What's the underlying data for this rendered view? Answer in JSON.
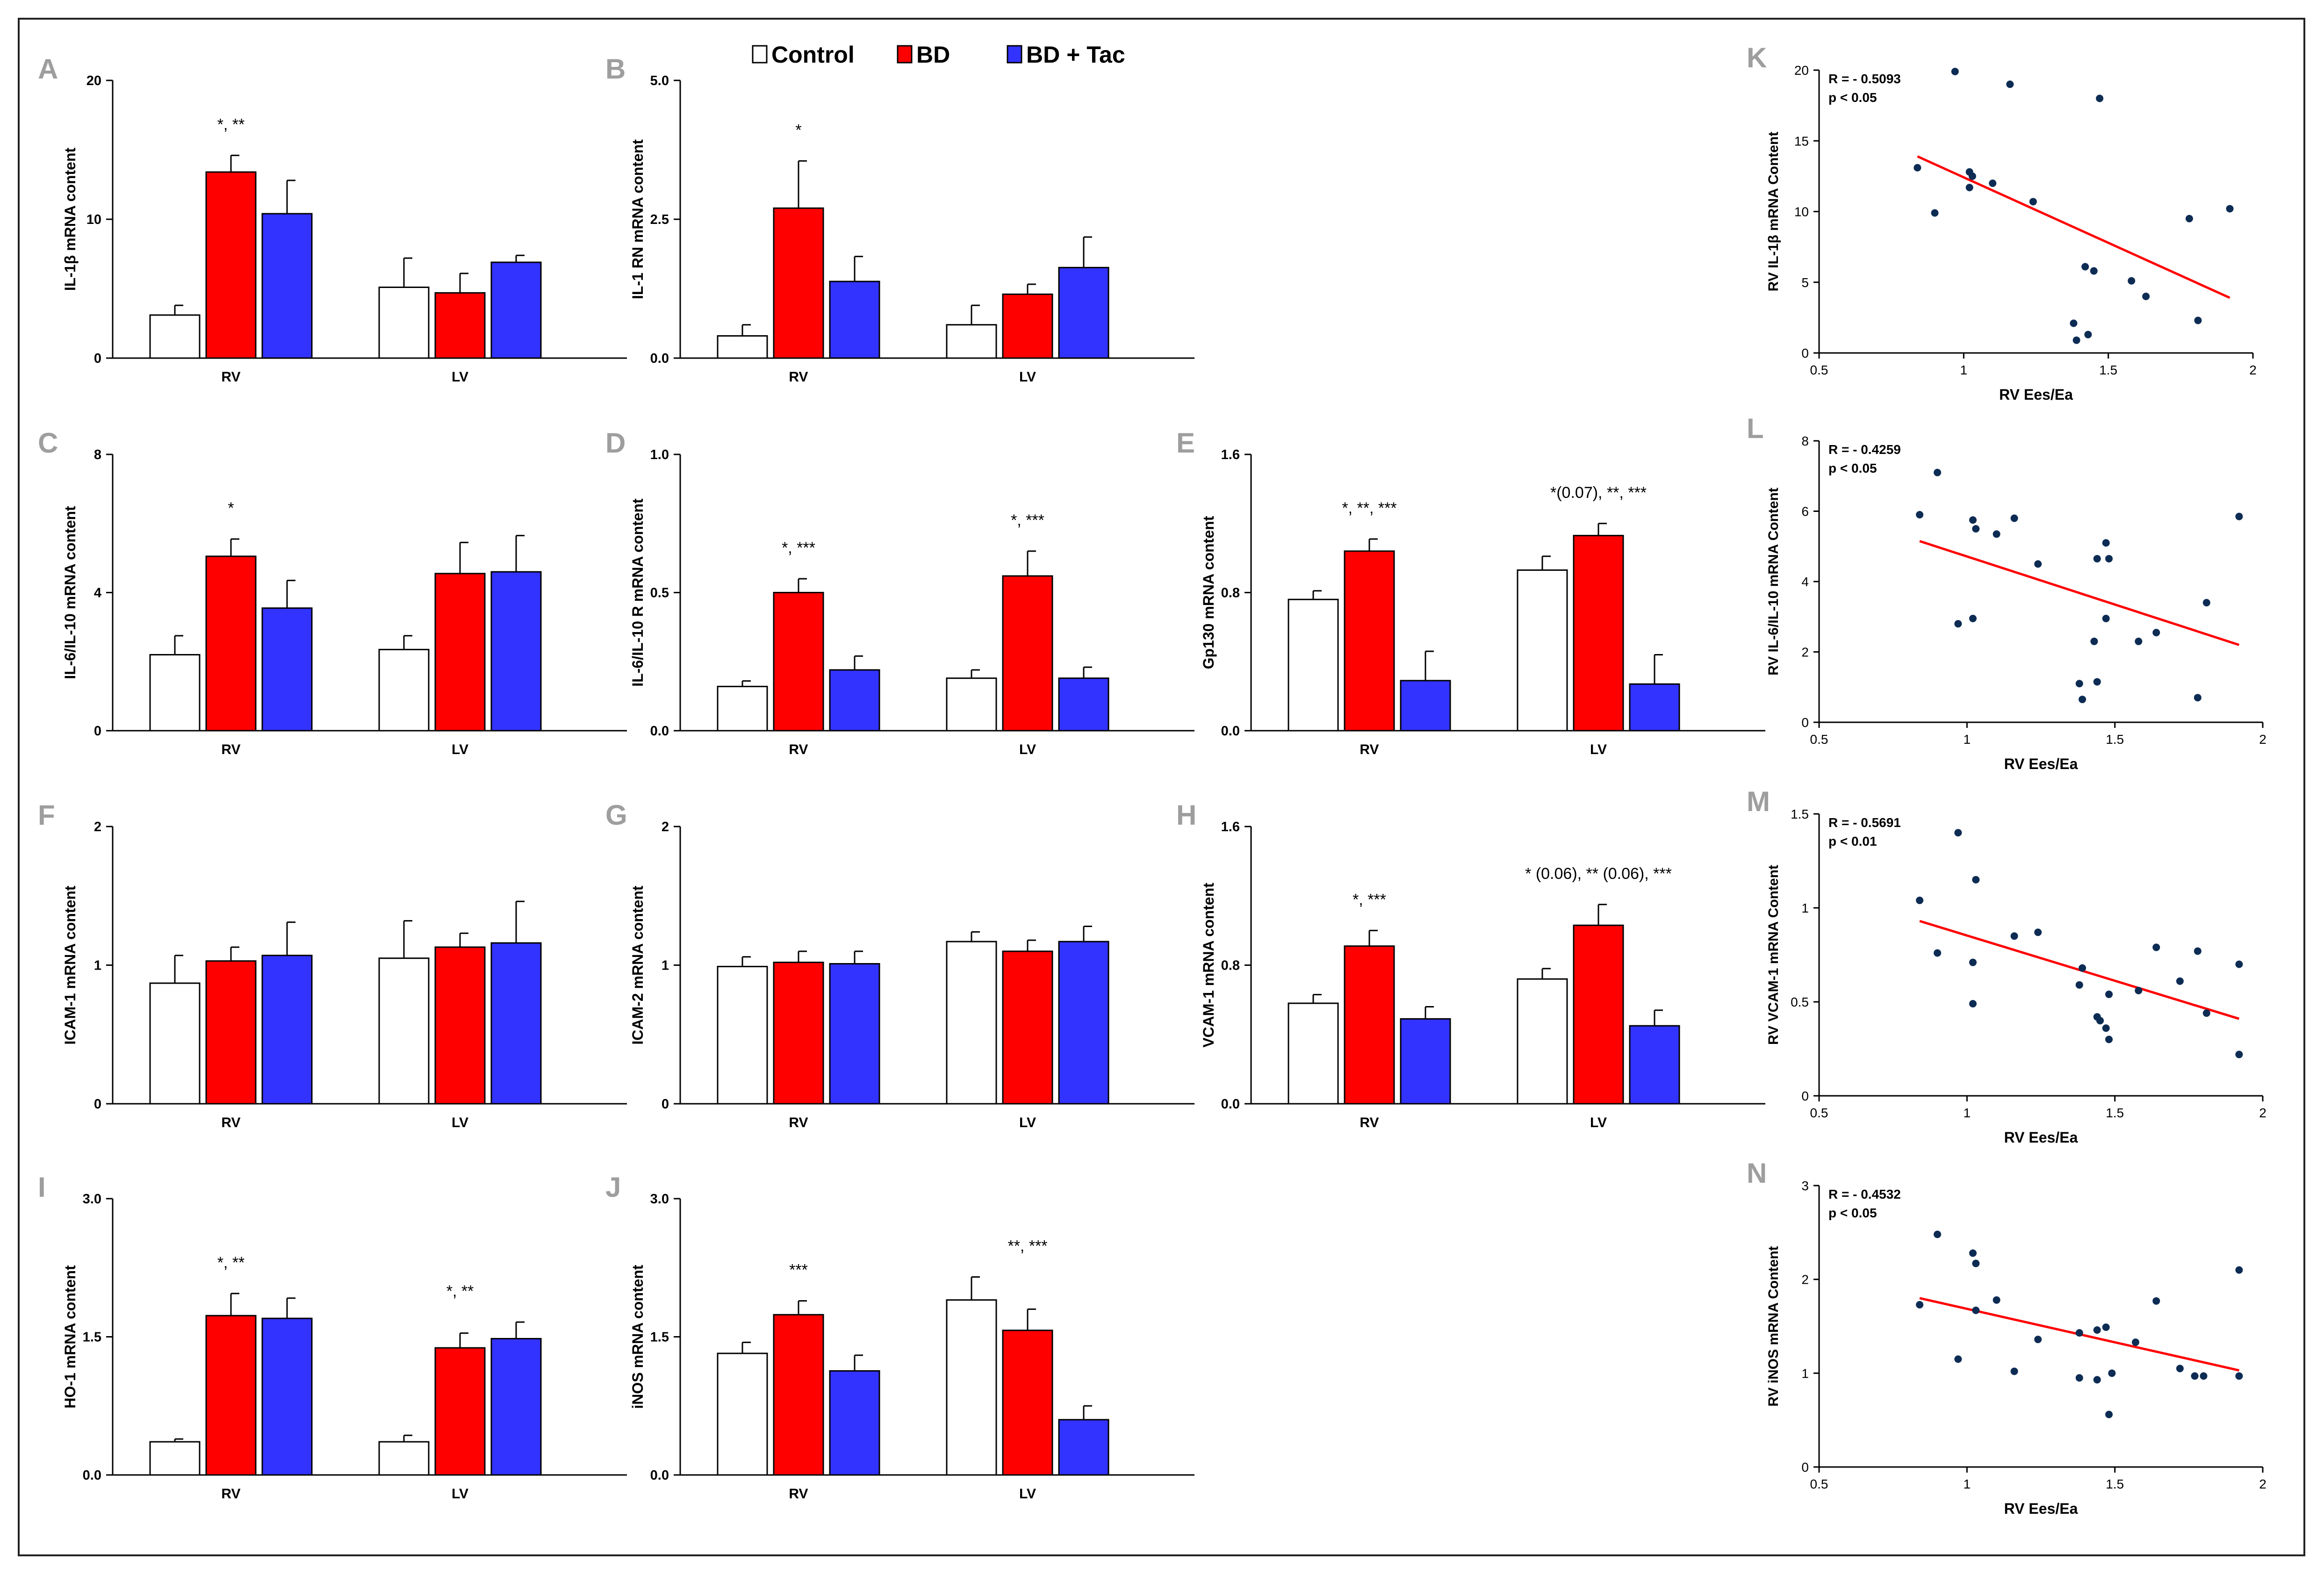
{
  "legend": [
    {
      "label": "Control",
      "color": "#ffffff"
    },
    {
      "label": "BD",
      "color": "#ff0000"
    },
    {
      "label": "BD + Tac",
      "color": "#3333ff"
    }
  ],
  "colors": {
    "control": "#ffffff",
    "bd": "#ff0000",
    "tac": "#3333ff",
    "label_grey": "#9e9e9e",
    "point": "#0d2c54",
    "fit": "#ff0000"
  },
  "chart_data": [
    {
      "type": "bar",
      "panel": "A",
      "ylabel": "IL-1β  mRNA content",
      "ylim": [
        0,
        20
      ],
      "yticks": [
        "0",
        "10",
        "20"
      ],
      "categories": [
        "RV",
        "LV"
      ],
      "series": [
        {
          "name": "Control",
          "values": [
            3.1,
            5.1
          ],
          "errors": [
            0.7,
            2.1
          ]
        },
        {
          "name": "BD",
          "values": [
            13.4,
            4.7
          ],
          "errors": [
            1.2,
            1.4
          ]
        },
        {
          "name": "BD + Tac",
          "values": [
            10.4,
            6.9
          ],
          "errors": [
            2.4,
            0.5
          ]
        }
      ],
      "annotations": [
        "*, **",
        ""
      ]
    },
    {
      "type": "bar",
      "panel": "B",
      "ylabel": "IL-1 RN  mRNA content",
      "ylim": [
        0,
        5
      ],
      "yticks": [
        "0.0",
        "2.5",
        "5.0"
      ],
      "categories": [
        "RV",
        "LV"
      ],
      "series": [
        {
          "name": "Control",
          "values": [
            0.4,
            0.6
          ],
          "errors": [
            0.2,
            0.35
          ]
        },
        {
          "name": "BD",
          "values": [
            2.7,
            1.15
          ],
          "errors": [
            0.85,
            0.18
          ]
        },
        {
          "name": "BD + Tac",
          "values": [
            1.38,
            1.63
          ],
          "errors": [
            0.45,
            0.55
          ]
        }
      ],
      "annotations": [
        "*",
        ""
      ]
    },
    {
      "type": "bar",
      "panel": "C",
      "ylabel": "IL-6/IL-10  mRNA content",
      "ylim": [
        0,
        8
      ],
      "yticks": [
        "0",
        "4",
        "8"
      ],
      "categories": [
        "RV",
        "LV"
      ],
      "series": [
        {
          "name": "Control",
          "values": [
            2.2,
            2.35
          ],
          "errors": [
            0.55,
            0.4
          ]
        },
        {
          "name": "BD",
          "values": [
            5.05,
            4.55
          ],
          "errors": [
            0.5,
            0.9
          ]
        },
        {
          "name": "BD + Tac",
          "values": [
            3.55,
            4.6
          ],
          "errors": [
            0.8,
            1.05
          ]
        }
      ],
      "annotations": [
        "*",
        ""
      ]
    },
    {
      "type": "bar",
      "panel": "D",
      "ylabel": "IL-6/IL-10 R  mRNA content",
      "ylim": [
        0,
        1
      ],
      "yticks": [
        "0.0",
        "0.5",
        "1.0"
      ],
      "categories": [
        "RV",
        "LV"
      ],
      "series": [
        {
          "name": "Control",
          "values": [
            0.16,
            0.19
          ],
          "errors": [
            0.02,
            0.03
          ]
        },
        {
          "name": "BD",
          "values": [
            0.5,
            0.56
          ],
          "errors": [
            0.05,
            0.09
          ]
        },
        {
          "name": "BD + Tac",
          "values": [
            0.22,
            0.19
          ],
          "errors": [
            0.05,
            0.04
          ]
        }
      ],
      "annotations": [
        "*, ***",
        "*, ***"
      ]
    },
    {
      "type": "bar",
      "panel": "E",
      "ylabel": "Gp130  mRNA content",
      "ylim": [
        0,
        1.6
      ],
      "yticks": [
        "0.0",
        "0.8",
        "1.6"
      ],
      "categories": [
        "RV",
        "LV"
      ],
      "series": [
        {
          "name": "Control",
          "values": [
            0.76,
            0.93
          ],
          "errors": [
            0.05,
            0.08
          ]
        },
        {
          "name": "BD",
          "values": [
            1.04,
            1.13
          ],
          "errors": [
            0.07,
            0.07
          ]
        },
        {
          "name": "BD + Tac",
          "values": [
            0.29,
            0.27
          ],
          "errors": [
            0.17,
            0.17
          ]
        }
      ],
      "annotations": [
        "*, **, ***",
        "*(0.07), **, ***"
      ]
    },
    {
      "type": "bar",
      "panel": "F",
      "ylabel": "ICAM-1 mRNA content",
      "ylim": [
        0,
        2
      ],
      "yticks": [
        "0",
        "1",
        "2"
      ],
      "categories": [
        "RV",
        "LV"
      ],
      "series": [
        {
          "name": "Control",
          "values": [
            0.87,
            1.05
          ],
          "errors": [
            0.2,
            0.27
          ]
        },
        {
          "name": "BD",
          "values": [
            1.03,
            1.13
          ],
          "errors": [
            0.1,
            0.1
          ]
        },
        {
          "name": "BD + Tac",
          "values": [
            1.07,
            1.16
          ],
          "errors": [
            0.24,
            0.3
          ]
        }
      ],
      "annotations": [
        "",
        ""
      ]
    },
    {
      "type": "bar",
      "panel": "G",
      "ylabel": "ICAM-2 mRNA content",
      "ylim": [
        0,
        2
      ],
      "yticks": [
        "0",
        "1",
        "2"
      ],
      "categories": [
        "RV",
        "LV"
      ],
      "series": [
        {
          "name": "Control",
          "values": [
            0.99,
            1.17
          ],
          "errors": [
            0.07,
            0.07
          ]
        },
        {
          "name": "BD",
          "values": [
            1.02,
            1.1
          ],
          "errors": [
            0.08,
            0.08
          ]
        },
        {
          "name": "BD + Tac",
          "values": [
            1.01,
            1.17
          ],
          "errors": [
            0.09,
            0.11
          ]
        }
      ],
      "annotations": [
        "",
        ""
      ]
    },
    {
      "type": "bar",
      "panel": "H",
      "ylabel": "VCAM-1 mRNA content",
      "ylim": [
        0,
        1.6
      ],
      "yticks": [
        "0.0",
        "0.8",
        "1.6"
      ],
      "categories": [
        "RV",
        "LV"
      ],
      "series": [
        {
          "name": "Control",
          "values": [
            0.58,
            0.72
          ],
          "errors": [
            0.05,
            0.06
          ]
        },
        {
          "name": "BD",
          "values": [
            0.91,
            1.03
          ],
          "errors": [
            0.09,
            0.12
          ]
        },
        {
          "name": "BD + Tac",
          "values": [
            0.49,
            0.45
          ],
          "errors": [
            0.07,
            0.09
          ]
        }
      ],
      "annotations": [
        "*, ***",
        "* (0.06), ** (0.06), ***"
      ]
    },
    {
      "type": "bar",
      "panel": "I",
      "ylabel": "HO-1 mRNA content",
      "ylim": [
        0,
        3
      ],
      "yticks": [
        "0.0",
        "1.5",
        "3.0"
      ],
      "categories": [
        "RV",
        "LV"
      ],
      "series": [
        {
          "name": "Control",
          "values": [
            0.36,
            0.36
          ],
          "errors": [
            0.03,
            0.07
          ]
        },
        {
          "name": "BD",
          "values": [
            1.73,
            1.38
          ],
          "errors": [
            0.24,
            0.16
          ]
        },
        {
          "name": "BD + Tac",
          "values": [
            1.7,
            1.48
          ],
          "errors": [
            0.22,
            0.18
          ]
        }
      ],
      "annotations": [
        "*, **",
        "*, **"
      ]
    },
    {
      "type": "bar",
      "panel": "J",
      "ylabel": "iNOS mRNA content",
      "ylim": [
        0,
        3
      ],
      "yticks": [
        "0.0",
        "1.5",
        "3.0"
      ],
      "categories": [
        "RV",
        "LV"
      ],
      "series": [
        {
          "name": "Control",
          "values": [
            1.32,
            1.9
          ],
          "errors": [
            0.12,
            0.25
          ]
        },
        {
          "name": "BD",
          "values": [
            1.74,
            1.57
          ],
          "errors": [
            0.15,
            0.23
          ]
        },
        {
          "name": "BD + Tac",
          "values": [
            1.13,
            0.6
          ],
          "errors": [
            0.17,
            0.15
          ]
        }
      ],
      "annotations": [
        "***",
        "**, ***"
      ]
    },
    {
      "type": "scatter",
      "panel": "K",
      "xlabel": "RV Ees/Ea",
      "ylabel": "RV IL-1β mRNA Content",
      "xlim": [
        0.5,
        2
      ],
      "ylim": [
        0,
        20
      ],
      "xticks": [
        "0.5",
        "1",
        "1.5",
        "2"
      ],
      "yticks": [
        "0",
        "5",
        "10",
        "15",
        "20"
      ],
      "stats": [
        "R = - 0.5093",
        "p <  0.05"
      ],
      "fit": [
        [
          0.84,
          13.9
        ],
        [
          1.92,
          3.9
        ]
      ],
      "points": [
        [
          0.84,
          13.1
        ],
        [
          0.9,
          9.9
        ],
        [
          0.97,
          19.9
        ],
        [
          1.02,
          12.8
        ],
        [
          1.02,
          11.7
        ],
        [
          1.03,
          12.5
        ],
        [
          1.1,
          12.0
        ],
        [
          1.16,
          19.0
        ],
        [
          1.24,
          10.7
        ],
        [
          1.38,
          2.1
        ],
        [
          1.39,
          0.9
        ],
        [
          1.42,
          6.1
        ],
        [
          1.43,
          1.3
        ],
        [
          1.45,
          5.8
        ],
        [
          1.47,
          18.0
        ],
        [
          1.58,
          5.1
        ],
        [
          1.63,
          4.0
        ],
        [
          1.78,
          9.5
        ],
        [
          1.81,
          2.3
        ],
        [
          1.92,
          10.2
        ]
      ]
    },
    {
      "type": "scatter",
      "panel": "L",
      "xlabel": "RV Ees/Ea",
      "ylabel": "RV IL-6/IL-10 mRNA Content",
      "xlim": [
        0.5,
        2
      ],
      "ylim": [
        0,
        8
      ],
      "xticks": [
        "0.5",
        "1",
        "1.5",
        "2"
      ],
      "yticks": [
        "0",
        "2",
        "4",
        "6",
        "8"
      ],
      "stats": [
        "R = - 0.4259",
        "p <  0.05"
      ],
      "fit": [
        [
          0.84,
          5.15
        ],
        [
          1.92,
          2.2
        ]
      ],
      "points": [
        [
          0.84,
          5.9
        ],
        [
          0.9,
          7.1
        ],
        [
          0.97,
          2.8
        ],
        [
          1.02,
          5.75
        ],
        [
          1.02,
          2.95
        ],
        [
          1.03,
          5.5
        ],
        [
          1.1,
          5.35
        ],
        [
          1.16,
          5.8
        ],
        [
          1.24,
          4.5
        ],
        [
          1.38,
          1.1
        ],
        [
          1.39,
          0.65
        ],
        [
          1.43,
          2.3
        ],
        [
          1.44,
          1.15
        ],
        [
          1.44,
          4.65
        ],
        [
          1.47,
          5.1
        ],
        [
          1.47,
          2.95
        ],
        [
          1.48,
          4.65
        ],
        [
          1.58,
          2.3
        ],
        [
          1.64,
          2.55
        ],
        [
          1.78,
          0.7
        ],
        [
          1.81,
          3.4
        ],
        [
          1.92,
          5.85
        ]
      ]
    },
    {
      "type": "scatter",
      "panel": "M",
      "xlabel": "RV Ees/Ea",
      "ylabel": "RV VCAM-1 mRNA Content",
      "xlim": [
        0.5,
        2
      ],
      "ylim": [
        0,
        1.5
      ],
      "xticks": [
        "0.5",
        "1",
        "1.5",
        "2"
      ],
      "yticks": [
        "0",
        "0.5",
        "1",
        "1.5"
      ],
      "stats": [
        "R = - 0.5691",
        "p <  0.01"
      ],
      "fit": [
        [
          0.84,
          0.93
        ],
        [
          1.92,
          0.41
        ]
      ],
      "points": [
        [
          0.84,
          1.04
        ],
        [
          0.9,
          0.76
        ],
        [
          0.97,
          1.4
        ],
        [
          1.02,
          0.71
        ],
        [
          1.02,
          0.49
        ],
        [
          1.03,
          1.15
        ],
        [
          1.16,
          0.85
        ],
        [
          1.24,
          0.87
        ],
        [
          1.38,
          0.59
        ],
        [
          1.39,
          0.68
        ],
        [
          1.44,
          0.42
        ],
        [
          1.45,
          0.4
        ],
        [
          1.47,
          0.36
        ],
        [
          1.48,
          0.3
        ],
        [
          1.48,
          0.54
        ],
        [
          1.58,
          0.56
        ],
        [
          1.64,
          0.79
        ],
        [
          1.72,
          0.61
        ],
        [
          1.78,
          0.77
        ],
        [
          1.81,
          0.44
        ],
        [
          1.92,
          0.7
        ],
        [
          1.92,
          0.22
        ]
      ]
    },
    {
      "type": "scatter",
      "panel": "N",
      "xlabel": "RV Ees/Ea",
      "ylabel": "RV iNOS mRNA Content",
      "xlim": [
        0.5,
        2
      ],
      "ylim": [
        0,
        3
      ],
      "xticks": [
        "0.5",
        "1",
        "1.5",
        "2"
      ],
      "yticks": [
        "0",
        "1",
        "2",
        "3"
      ],
      "stats": [
        "R = - 0.4532",
        "p <  0.05"
      ],
      "fit": [
        [
          0.84,
          1.8
        ],
        [
          1.92,
          1.03
        ]
      ],
      "points": [
        [
          0.84,
          1.73
        ],
        [
          0.9,
          2.48
        ],
        [
          0.97,
          1.15
        ],
        [
          1.02,
          2.28
        ],
        [
          1.03,
          2.17
        ],
        [
          1.03,
          1.67
        ],
        [
          1.1,
          1.78
        ],
        [
          1.16,
          1.02
        ],
        [
          1.24,
          1.36
        ],
        [
          1.38,
          0.95
        ],
        [
          1.38,
          1.43
        ],
        [
          1.44,
          0.93
        ],
        [
          1.44,
          1.46
        ],
        [
          1.47,
          1.49
        ],
        [
          1.48,
          0.56
        ],
        [
          1.49,
          1.0
        ],
        [
          1.57,
          1.33
        ],
        [
          1.64,
          1.77
        ],
        [
          1.72,
          1.05
        ],
        [
          1.77,
          0.97
        ],
        [
          1.8,
          0.97
        ],
        [
          1.92,
          2.1
        ],
        [
          1.92,
          0.97
        ]
      ]
    }
  ]
}
